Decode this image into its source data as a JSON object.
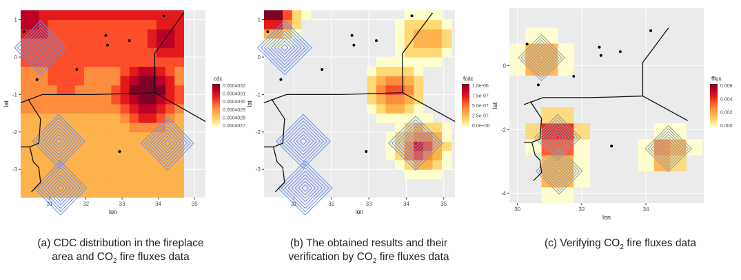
{
  "captions": [
    {
      "line1": "(a) CDC distribution in the fireplace",
      "line2a": "area and CO",
      "sub": "2",
      "line2b": " fire fluxes data"
    },
    {
      "line1": "(b) The obtained results and their",
      "line2a": "verification by CO",
      "sub": "2",
      "line2b": " fire fluxes data"
    },
    {
      "line1": "",
      "line2a": "(c) Verifying CO",
      "sub": "2",
      "line2b": " fire fluxes data"
    }
  ],
  "chart_data": [
    {
      "type": "heatmap",
      "xlabel": "lon",
      "ylabel": "lat",
      "xlim": [
        30.2,
        35.3
      ],
      "ylim": [
        -3.75,
        1.25
      ],
      "xticks": [
        31,
        32,
        33,
        34,
        35
      ],
      "yticks": [
        1,
        0,
        -1,
        -2,
        -3
      ],
      "grid": true,
      "legend": {
        "title": "cdc",
        "labels": [
          "0.0004032",
          "0.0004031",
          "0.0004030",
          "0.0004029",
          "0.0004028",
          "0.0004027"
        ],
        "placement": "right"
      },
      "field_min": 0.0004027,
      "field_max": 0.0004032,
      "hotspots": [
        {
          "lon": 33.7,
          "lat": -0.9,
          "value": 0.0004032
        },
        {
          "lon": 34.3,
          "lat": 0.5,
          "value": 0.0004031
        },
        {
          "lon": 30.5,
          "lat": 1.0,
          "value": 0.0004031
        },
        {
          "lon": 31.5,
          "lat": -0.5,
          "value": 0.000403
        }
      ],
      "flux_contours": [
        {
          "lon": 30.75,
          "lat": 0.25
        },
        {
          "lon": 31.25,
          "lat": -2.25
        },
        {
          "lon": 34.25,
          "lat": -2.3
        },
        {
          "lon": 31.3,
          "lat": -3.5
        }
      ],
      "contour_color": "#6a8cf0"
    },
    {
      "type": "heatmap",
      "xlabel": "lon",
      "ylabel": "lat",
      "xlim": [
        30.2,
        35.3
      ],
      "ylim": [
        -3.75,
        1.25
      ],
      "xticks": [
        31,
        32,
        33,
        34,
        35
      ],
      "yticks": [
        1,
        0,
        -1,
        -2,
        -3
      ],
      "grid": true,
      "legend": {
        "title": "fcdc",
        "labels": [
          "1.0e-06",
          "7.5e-07",
          "5.0e-07",
          "2.5e-07",
          "0.0e+00"
        ],
        "placement": "right"
      },
      "field_min": 0,
      "field_max": 1e-06,
      "hotspots": [
        {
          "lon": 33.7,
          "lat": -0.9,
          "value": 6e-07
        },
        {
          "lon": 34.4,
          "lat": -2.4,
          "value": 6.5e-07
        },
        {
          "lon": 30.4,
          "lat": 1.2,
          "value": 1e-06
        },
        {
          "lon": 34.5,
          "lat": 0.5,
          "value": 4e-07
        }
      ],
      "flux_contours": [
        {
          "lon": 30.75,
          "lat": 0.25
        },
        {
          "lon": 31.25,
          "lat": -2.25
        },
        {
          "lon": 34.25,
          "lat": -2.3
        },
        {
          "lon": 31.3,
          "lat": -3.5
        }
      ],
      "contour_color": "#6a8cf0"
    },
    {
      "type": "heatmap",
      "xlabel": "lon",
      "ylabel": "lat",
      "xlim": [
        29.75,
        35.8
      ],
      "ylim": [
        -4.3,
        1.8
      ],
      "xticks": [
        30,
        32,
        34
      ],
      "yticks": [
        0,
        -2,
        -4
      ],
      "grid": true,
      "legend": {
        "title": "fflux",
        "labels": [
          "0.006",
          "0.004",
          "0.002",
          "0.000"
        ],
        "placement": "right"
      },
      "field_min": 0,
      "field_max": 0.006,
      "hotspots": [
        {
          "lon": 31.25,
          "lat": -2.25,
          "value": 0.006
        },
        {
          "lon": 30.75,
          "lat": 0.25,
          "value": 0.003
        },
        {
          "lon": 34.7,
          "lat": -2.7,
          "value": 0.0028
        },
        {
          "lon": 31.3,
          "lat": -3.3,
          "value": 0.003
        }
      ],
      "flux_contours": [
        {
          "lon": 30.75,
          "lat": 0.25
        },
        {
          "lon": 31.25,
          "lat": -2.25
        },
        {
          "lon": 34.7,
          "lat": -2.6
        },
        {
          "lon": 31.3,
          "lat": -3.3
        }
      ],
      "contour_color": "#999999"
    }
  ],
  "stations": [
    [
      30.3,
      0.68
    ],
    [
      30.65,
      -0.6
    ],
    [
      31.75,
      -0.33
    ],
    [
      32.55,
      0.58
    ],
    [
      32.6,
      0.32
    ],
    [
      33.2,
      0.44
    ],
    [
      34.15,
      1.1
    ],
    [
      32.93,
      -2.52
    ]
  ],
  "borders": [
    [
      [
        30.2,
        -1.22
      ],
      [
        30.8,
        -1.0
      ],
      [
        32.2,
        -1.0
      ],
      [
        33.0,
        -0.98
      ],
      [
        33.9,
        -0.95
      ],
      [
        33.9,
        0.1
      ],
      [
        34.7,
        1.18
      ]
    ],
    [
      [
        33.9,
        -0.95
      ],
      [
        35.3,
        -1.72
      ]
    ],
    [
      [
        30.4,
        -1.12
      ],
      [
        30.75,
        -1.65
      ],
      [
        30.7,
        -2.3
      ],
      [
        30.45,
        -2.4
      ],
      [
        30.2,
        -2.4
      ]
    ],
    [
      [
        30.45,
        -2.4
      ],
      [
        30.55,
        -2.8
      ],
      [
        30.7,
        -2.95
      ],
      [
        30.75,
        -3.35
      ],
      [
        30.5,
        -3.6
      ]
    ]
  ],
  "colors": {
    "scale": [
      "#ffffcc",
      "#fed976",
      "#feb24c",
      "#fd8d3c",
      "#fc4e2a",
      "#e31a1c",
      "#bd0026",
      "#800026"
    ],
    "panel": "#ebebeb"
  }
}
